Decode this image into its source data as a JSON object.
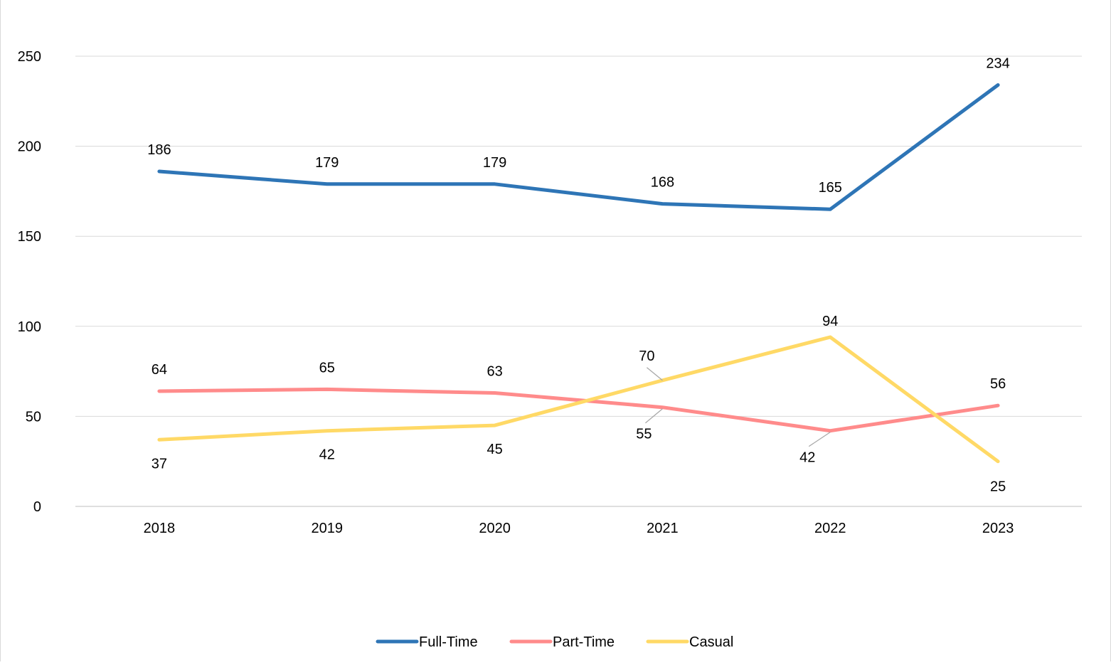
{
  "chart_data": {
    "type": "line",
    "title": "",
    "xlabel": "",
    "ylabel": "",
    "categories": [
      "2018",
      "2019",
      "2020",
      "2021",
      "2022",
      "2023"
    ],
    "ylim": [
      0,
      250
    ],
    "y_ticks": [
      0,
      50,
      100,
      150,
      200,
      250
    ],
    "grid": "horizontal",
    "legend_position": "bottom",
    "series": [
      {
        "name": "Full-Time",
        "color": "#2e75b6",
        "values": [
          186,
          179,
          179,
          168,
          165,
          234
        ]
      },
      {
        "name": "Part-Time",
        "color": "#ff8b8b",
        "values": [
          64,
          65,
          63,
          55,
          42,
          56
        ]
      },
      {
        "name": "Casual",
        "color": "#ffd966",
        "values": [
          37,
          42,
          45,
          70,
          94,
          25
        ]
      }
    ]
  }
}
